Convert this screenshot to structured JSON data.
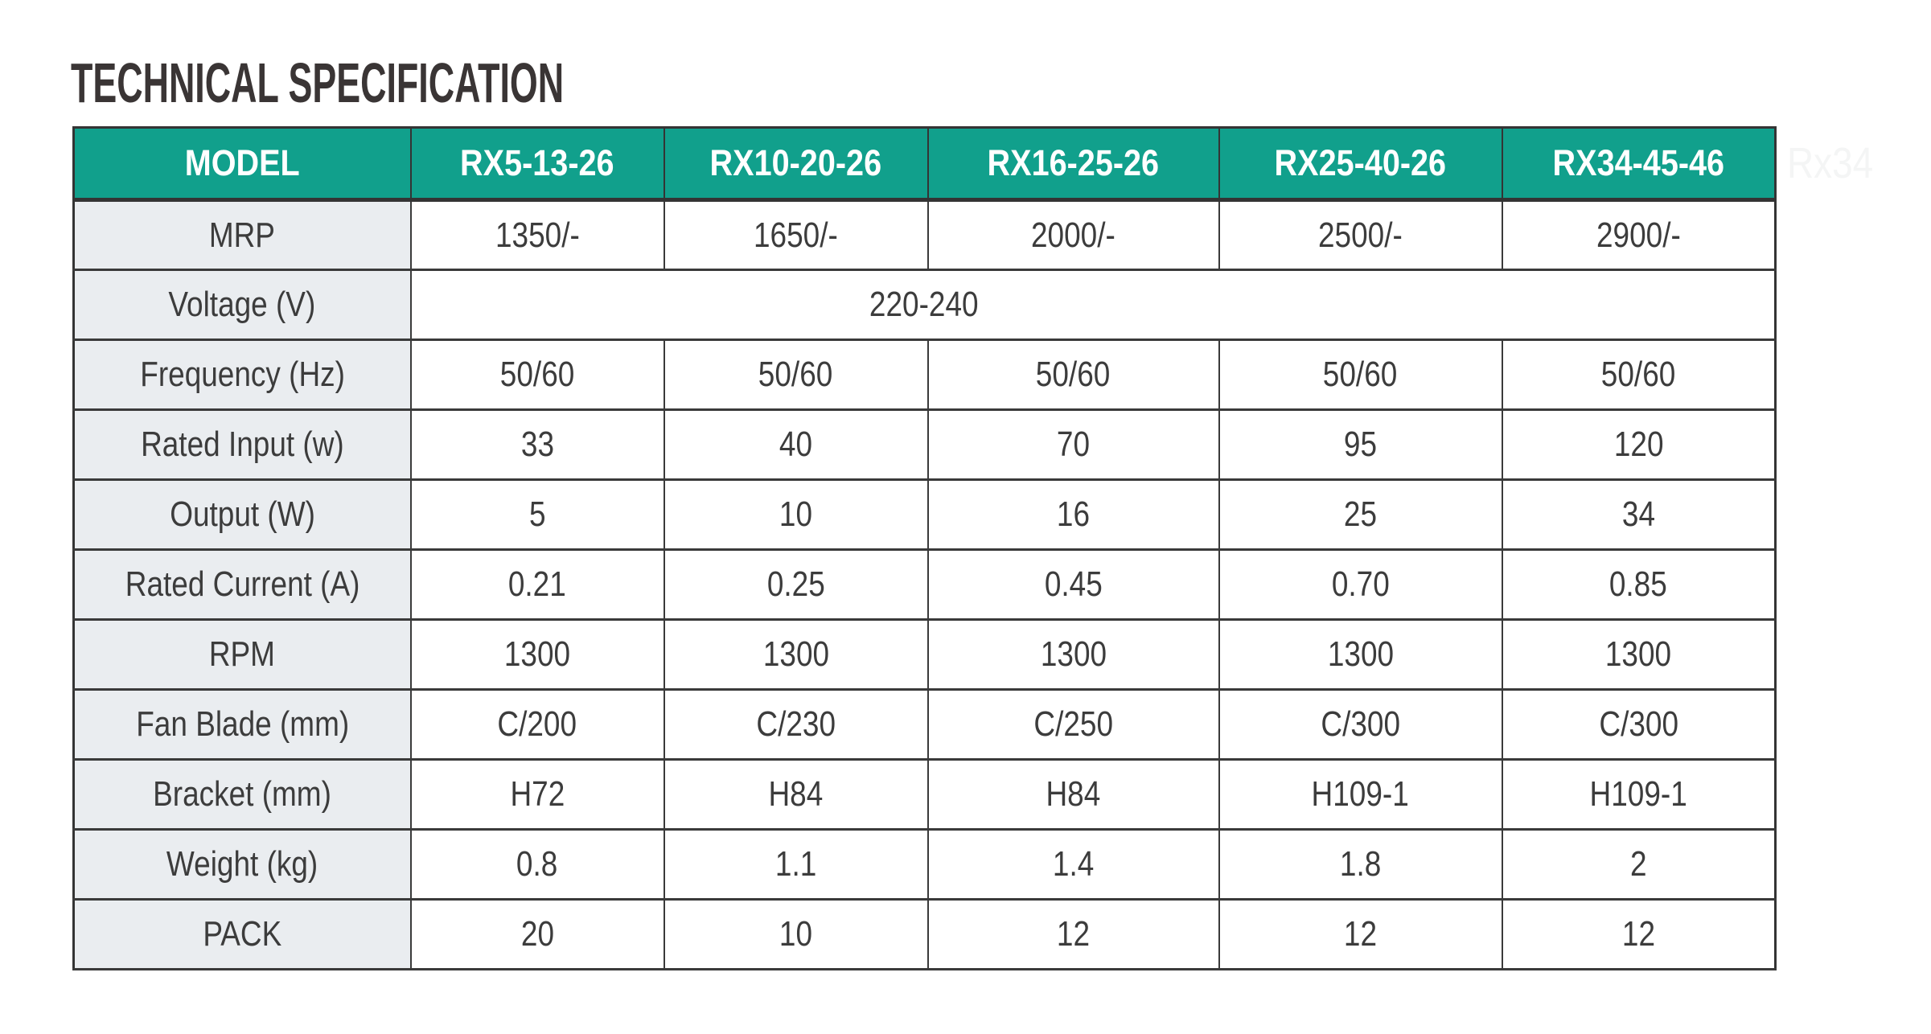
{
  "page": {
    "title": "TECHNICAL SPECIFICATION"
  },
  "ghost_text": "Rx34",
  "colors": {
    "accent_teal": "#11a08c",
    "label_cell_bg": "#eaedf0",
    "border": "#3a3a3a",
    "body_text": "#3c3c3c",
    "header_text": "#ffffff",
    "title_text": "#3a3535",
    "ghost_text": "#f4f5f5",
    "page_bg": "#ffffff"
  },
  "table": {
    "columns": [
      "MODEL",
      "RX5-13-26",
      "RX10-20-26",
      "RX16-25-26",
      "RX25-40-26",
      "RX34-45-46"
    ],
    "rows": [
      {
        "label": "MRP",
        "values": [
          "1350/-",
          "1650/-",
          "2000/-",
          "2500/-",
          "2900/-"
        ]
      },
      {
        "label": "Voltage (V)",
        "merged_value": "220-240"
      },
      {
        "label": "Frequency (Hz)",
        "values": [
          "50/60",
          "50/60",
          "50/60",
          "50/60",
          "50/60"
        ]
      },
      {
        "label": "Rated Input (w)",
        "values": [
          "33",
          "40",
          "70",
          "95",
          "120"
        ]
      },
      {
        "label": "Output (W)",
        "values": [
          "5",
          "10",
          "16",
          "25",
          "34"
        ]
      },
      {
        "label": "Rated Current (A)",
        "values": [
          "0.21",
          "0.25",
          "0.45",
          "0.70",
          "0.85"
        ]
      },
      {
        "label": "RPM",
        "values": [
          "1300",
          "1300",
          "1300",
          "1300",
          "1300"
        ]
      },
      {
        "label": "Fan Blade (mm)",
        "values": [
          "C/200",
          "C/230",
          "C/250",
          "C/300",
          "C/300"
        ]
      },
      {
        "label": "Bracket (mm)",
        "values": [
          "H72",
          "H84",
          "H84",
          "H109-1",
          "H109-1"
        ]
      },
      {
        "label": "Weight (kg)",
        "values": [
          "0.8",
          "1.1",
          "1.4",
          "1.8",
          "2"
        ]
      },
      {
        "label": "PACK",
        "values": [
          "20",
          "10",
          "12",
          "12",
          "12"
        ]
      }
    ]
  }
}
